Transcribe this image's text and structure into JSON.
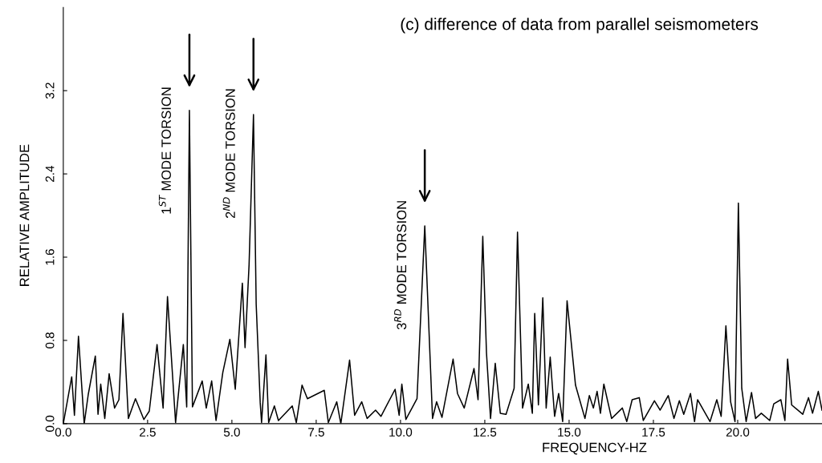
{
  "chart_data": {
    "type": "line",
    "title": "(c) difference of data from parallel seismometers",
    "xlabel": "FREQUENCY-HZ",
    "ylabel": "RELATIVE AMPLITUDE",
    "x": [
      0.0,
      0.25,
      0.33,
      0.45,
      0.62,
      0.74,
      0.95,
      1.03,
      1.11,
      1.23,
      1.36,
      1.52,
      1.65,
      1.77,
      1.93,
      2.14,
      2.39,
      2.55,
      2.78,
      2.96,
      3.09,
      3.33,
      3.56,
      3.66,
      3.74,
      3.83,
      4.12,
      4.24,
      4.4,
      4.53,
      4.73,
      4.94,
      5.1,
      5.31,
      5.39,
      5.51,
      5.64,
      5.72,
      5.84,
      5.88,
      6.01,
      6.09,
      6.26,
      6.38,
      6.79,
      6.91,
      7.08,
      7.24,
      7.74,
      7.86,
      8.11,
      8.23,
      8.49,
      8.64,
      8.85,
      9.01,
      9.26,
      9.42,
      9.84,
      9.96,
      10.04,
      10.16,
      10.49,
      10.72,
      10.95,
      11.07,
      11.23,
      11.56,
      11.69,
      11.89,
      12.18,
      12.3,
      12.44,
      12.55,
      12.67,
      12.81,
      12.96,
      13.13,
      13.37,
      13.47,
      13.62,
      13.79,
      13.91,
      13.98,
      14.09,
      14.22,
      14.32,
      14.44,
      14.57,
      14.69,
      14.81,
      14.94,
      15.19,
      15.47,
      15.6,
      15.72,
      15.83,
      15.93,
      16.03,
      16.26,
      16.58,
      16.71,
      16.87,
      17.08,
      17.2,
      17.53,
      17.7,
      17.94,
      18.11,
      18.27,
      18.4,
      18.6,
      18.72,
      18.81,
      19.18,
      19.38,
      19.51,
      19.65,
      19.79,
      19.92,
      20.02,
      20.12,
      20.25,
      20.41,
      20.53,
      20.7,
      20.95,
      21.07,
      21.28,
      21.4,
      21.48,
      21.6,
      21.93,
      22.1,
      22.22,
      22.39,
      22.5
    ],
    "series": [
      {
        "color": "#000000",
        "values": [
          0.0,
          0.45,
          0.08,
          0.84,
          0.0,
          0.28,
          0.65,
          0.09,
          0.38,
          0.05,
          0.48,
          0.15,
          0.23,
          1.06,
          0.05,
          0.24,
          0.04,
          0.12,
          0.76,
          0.15,
          1.22,
          0.01,
          0.76,
          0.16,
          3.01,
          0.16,
          0.41,
          0.15,
          0.41,
          0.03,
          0.49,
          0.81,
          0.33,
          1.35,
          0.73,
          1.53,
          2.97,
          1.15,
          0.2,
          0.01,
          0.66,
          0.01,
          0.17,
          0.03,
          0.17,
          0.01,
          0.37,
          0.24,
          0.32,
          0.01,
          0.21,
          0.0,
          0.61,
          0.08,
          0.21,
          0.05,
          0.13,
          0.07,
          0.33,
          0.08,
          0.38,
          0.04,
          0.24,
          1.9,
          0.05,
          0.21,
          0.06,
          0.62,
          0.29,
          0.15,
          0.53,
          0.23,
          1.8,
          0.68,
          0.05,
          0.58,
          0.1,
          0.09,
          0.34,
          1.84,
          0.15,
          0.38,
          0.1,
          1.06,
          0.18,
          1.21,
          0.15,
          0.64,
          0.07,
          0.29,
          0.02,
          1.18,
          0.37,
          0.05,
          0.27,
          0.15,
          0.31,
          0.1,
          0.38,
          0.05,
          0.15,
          0.02,
          0.23,
          0.25,
          0.03,
          0.22,
          0.13,
          0.27,
          0.05,
          0.22,
          0.09,
          0.29,
          0.02,
          0.23,
          0.02,
          0.23,
          0.07,
          0.94,
          0.21,
          0.02,
          2.12,
          0.34,
          0.02,
          0.3,
          0.05,
          0.1,
          0.03,
          0.19,
          0.23,
          0.03,
          0.62,
          0.18,
          0.09,
          0.25,
          0.1,
          0.31,
          0.13
        ]
      }
    ],
    "xlim": [
      0,
      22.5
    ],
    "ylim": [
      0,
      4.0
    ],
    "xticks": [
      {
        "value": 0,
        "label": "0.0"
      },
      2.5,
      {
        "value": 5,
        "label": "5.0"
      },
      7.5,
      {
        "value": 10,
        "label": "10.0"
      },
      12.5,
      {
        "value": 15,
        "label": "15.0"
      },
      17.5,
      {
        "value": 20,
        "label": "20.0"
      }
    ],
    "yticks": [
      {
        "value": 0,
        "label": "0.0"
      },
      0.8,
      1.6,
      2.4,
      3.2
    ],
    "annotations": [
      {
        "text": "1$^{ST}$ MODE TORSION",
        "x": 3.74,
        "y": 3.01
      },
      {
        "text": "2$^{ND}$ MODE TORSION",
        "x": 5.64,
        "y": 2.97
      },
      {
        "text": "3$^{RD}$ MODE TORSION",
        "x": 10.72,
        "y": 1.9
      }
    ],
    "grid": false,
    "legend": false,
    "marker": "none",
    "line_style": "solid"
  }
}
